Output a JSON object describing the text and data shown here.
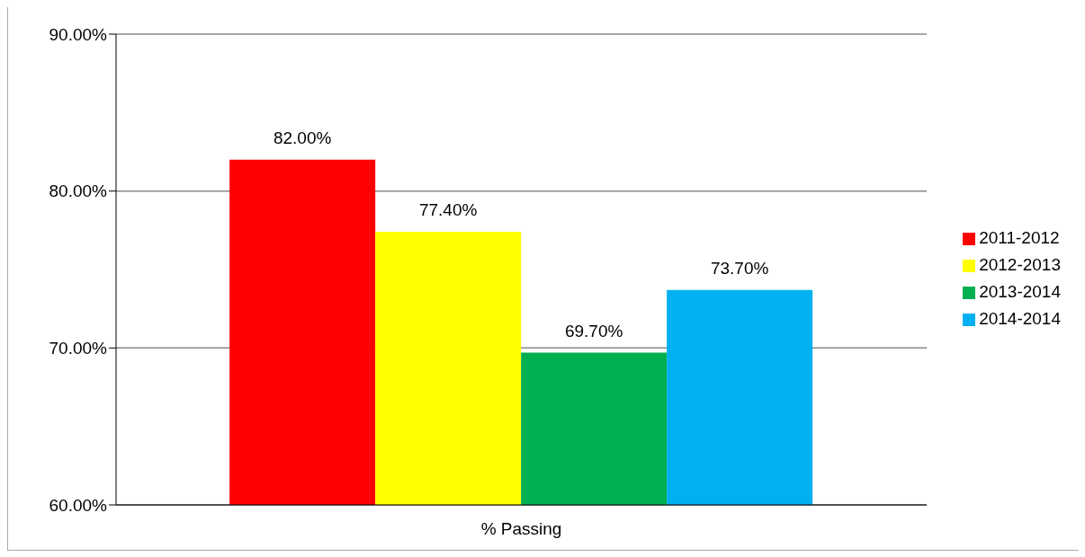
{
  "chart_data": {
    "type": "bar",
    "categories": [
      "% Passing"
    ],
    "series": [
      {
        "name": "2011-2012",
        "color": "#ff0000",
        "values": [
          82
        ],
        "value_labels": [
          "82.00%"
        ]
      },
      {
        "name": "2012-2013",
        "color": "#ffff00",
        "values": [
          77.4
        ],
        "value_labels": [
          "77.40%"
        ]
      },
      {
        "name": "2013-2014",
        "color": "#00b050",
        "values": [
          69.7
        ],
        "value_labels": [
          "69.70%"
        ]
      },
      {
        "name": "2014-2014",
        "color": "#00b0f0",
        "values": [
          73.7
        ],
        "value_labels": [
          "73.70%"
        ]
      }
    ],
    "ylim": [
      60,
      90
    ],
    "yticks": [
      {
        "value": 60,
        "label": "60.00%"
      },
      {
        "value": 70,
        "label": "70.00%"
      },
      {
        "value": 80,
        "label": "80.00%"
      },
      {
        "value": 90,
        "label": "90.00%"
      }
    ],
    "grid": "y",
    "legend": "right"
  }
}
